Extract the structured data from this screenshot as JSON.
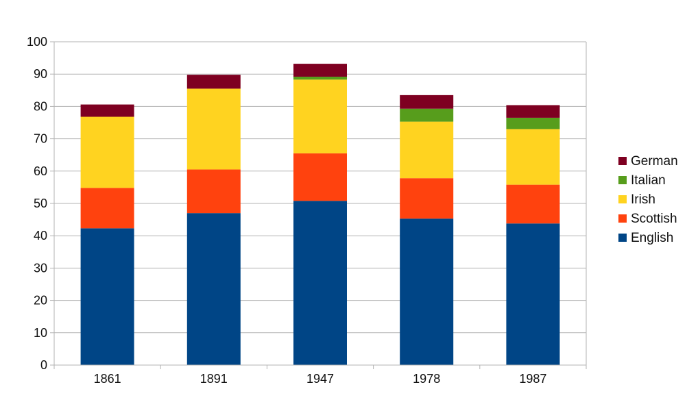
{
  "chart_data": {
    "type": "bar",
    "stacked": true,
    "title": "",
    "xlabel": "",
    "ylabel": "",
    "categories": [
      "1861",
      "1891",
      "1947",
      "1978",
      "1987"
    ],
    "ylim": [
      0,
      100
    ],
    "yticks": [
      "0",
      "10",
      "20",
      "30",
      "40",
      "50",
      "60",
      "70",
      "80",
      "90",
      "100"
    ],
    "grid": true,
    "legend_position": "right",
    "series": [
      {
        "name": "English",
        "color": "#004586",
        "values": [
          42.3,
          47.0,
          50.8,
          45.3,
          43.8
        ]
      },
      {
        "name": "Scottish",
        "color": "#ff420e",
        "values": [
          12.5,
          13.5,
          14.7,
          12.5,
          12.0
        ]
      },
      {
        "name": "Irish",
        "color": "#ffd320",
        "values": [
          22.0,
          25.0,
          22.8,
          17.5,
          17.2
        ]
      },
      {
        "name": "Italian",
        "color": "#579d1c",
        "values": [
          0.0,
          0.0,
          0.9,
          4.0,
          3.5
        ]
      },
      {
        "name": "German",
        "color": "#7e0021",
        "values": [
          3.8,
          4.3,
          4.0,
          4.2,
          3.9
        ]
      }
    ]
  }
}
